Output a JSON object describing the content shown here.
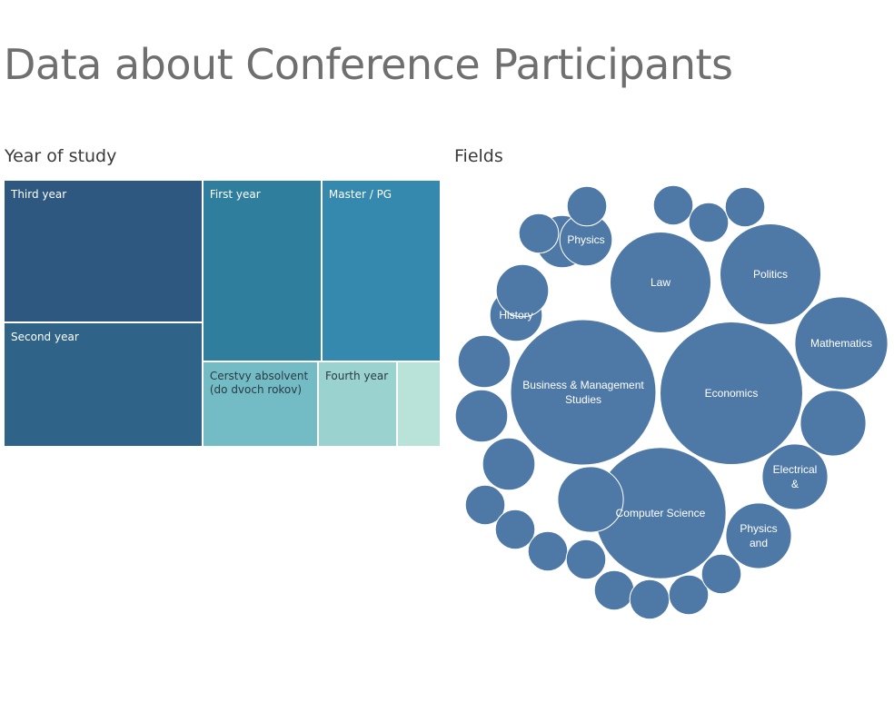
{
  "title": "Data about Conference Participants",
  "chart_data": [
    {
      "type": "treemap",
      "title": "Year of study",
      "items": [
        {
          "label": "Third year",
          "value": 46,
          "color": "#2e5880",
          "text_color": "#ffffff"
        },
        {
          "label": "Second year",
          "value": 40,
          "color": "#2f6388",
          "text_color": "#ffffff"
        },
        {
          "label": "First year",
          "value": 35,
          "color": "#2f7e9e",
          "text_color": "#ffffff"
        },
        {
          "label": "Master / PG",
          "value": 35,
          "color": "#3588ae",
          "text_color": "#ffffff"
        },
        {
          "label": "Cerstvy absolvent\n(do dvoch rokov)",
          "value": 16,
          "color": "#74bcc5",
          "text_color": "#2a3b44"
        },
        {
          "label": "Fourth year",
          "value": 11,
          "color": "#9ad2d0",
          "text_color": "#2a3b44"
        },
        {
          "label": "",
          "value": 6,
          "color": "#b9e3d8",
          "text_color": "#2a3b44"
        }
      ]
    },
    {
      "type": "bubble",
      "title": "Fields",
      "color": "#4e79a7",
      "items": [
        {
          "label": "Business & Management Studies",
          "value": 27
        },
        {
          "label": "Economics",
          "value": 26
        },
        {
          "label": "Computer Science",
          "value": 22
        },
        {
          "label": "Law",
          "value": 13
        },
        {
          "label": "Politics",
          "value": 13
        },
        {
          "label": "Mathematics",
          "value": 11
        },
        {
          "label": "",
          "value": 5.5
        },
        {
          "label": "Electrical &",
          "value": 5.5
        },
        {
          "label": "Physics and",
          "value": 5.5
        },
        {
          "label": "",
          "value": 5.5
        },
        {
          "label": "",
          "value": 3.5
        },
        {
          "label": "Physics",
          "value": 3.5
        },
        {
          "label": "History",
          "value": 3.5
        },
        {
          "label": "",
          "value": 3.5
        },
        {
          "label": "",
          "value": 3.5
        },
        {
          "label": "",
          "value": 3.5
        },
        {
          "label": "",
          "value": 3.5
        },
        {
          "label": "",
          "value": 2
        },
        {
          "label": "",
          "value": 2
        },
        {
          "label": "",
          "value": 2
        },
        {
          "label": "",
          "value": 2
        },
        {
          "label": "",
          "value": 2
        },
        {
          "label": "",
          "value": 2
        },
        {
          "label": "",
          "value": 2
        },
        {
          "label": "",
          "value": 2
        },
        {
          "label": "",
          "value": 2
        },
        {
          "label": "",
          "value": 2
        },
        {
          "label": "",
          "value": 2
        },
        {
          "label": "",
          "value": 2
        },
        {
          "label": "",
          "value": 2
        }
      ]
    }
  ]
}
